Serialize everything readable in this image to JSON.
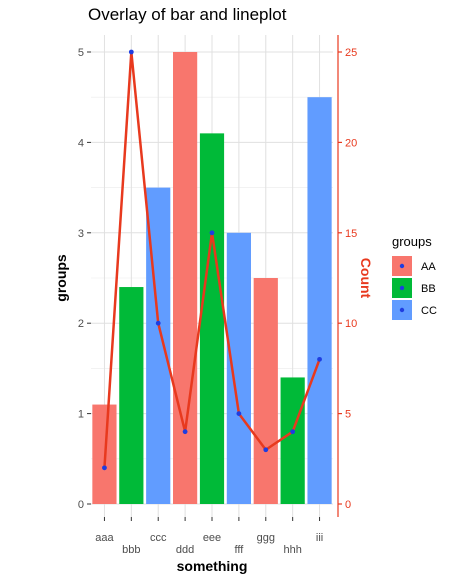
{
  "chart_data": {
    "type": "bar",
    "title": "Overlay of bar and lineplot",
    "xlabel": "something",
    "ylabel": "groups",
    "ylabel_right": "Count",
    "categories": [
      "aaa",
      "bbb",
      "ccc",
      "ddd",
      "eee",
      "fff",
      "ggg",
      "hhh",
      "iii"
    ],
    "bar_values": [
      1.1,
      2.4,
      3.5,
      5.0,
      4.1,
      3.0,
      2.5,
      1.4,
      4.5
    ],
    "bar_groups": [
      "AA",
      "BB",
      "CC",
      "AA",
      "BB",
      "CC",
      "AA",
      "BB",
      "CC"
    ],
    "line_values": [
      2,
      25,
      10,
      4,
      15,
      5,
      3,
      4,
      8
    ],
    "ylim": [
      0,
      5
    ],
    "yticks": [
      0,
      1,
      2,
      3,
      4,
      5
    ],
    "ylim_right": [
      0,
      25
    ],
    "yticks_right": [
      0,
      5,
      10,
      15,
      20,
      25
    ],
    "grid": true,
    "legend": {
      "title": "groups",
      "position": "right",
      "items": [
        {
          "label": "AA",
          "color": "#f8766d"
        },
        {
          "label": "BB",
          "color": "#00ba38"
        },
        {
          "label": "CC",
          "color": "#619cff"
        }
      ]
    },
    "colors": {
      "line": "#e8391e",
      "points": "#1f3de0",
      "right_axis": "#e8391e"
    }
  }
}
